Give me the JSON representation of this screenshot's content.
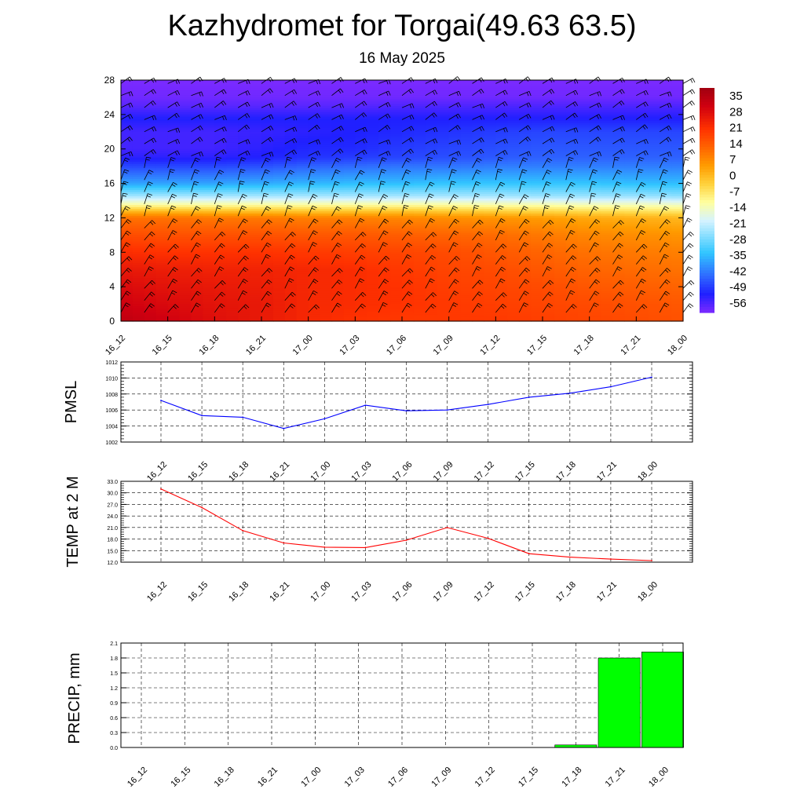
{
  "title": "Kazhydromet for Torgai(49.63 63.5)",
  "subtitle": "16 May 2025",
  "colors": {
    "pmsl_line": "#0000ff",
    "temp_line": "#ff0000",
    "precip_bar": "#00ff00",
    "wind_barb": "#000000"
  },
  "chart_data": [
    {
      "type": "heatmap",
      "title": "",
      "x_ticks": [
        "16_12",
        "16_15",
        "16_18",
        "16_21",
        "17_00",
        "17_03",
        "17_06",
        "17_09",
        "17_12",
        "17_15",
        "17_18",
        "17_21",
        "18_00"
      ],
      "y_ticks": [
        "0",
        "4",
        "8",
        "12",
        "16",
        "20",
        "24",
        "28"
      ],
      "ylim": [
        0,
        28
      ],
      "colorbar": {
        "labels": [
          "35",
          "28",
          "21",
          "14",
          "7",
          "0",
          "-7",
          "-14",
          "-21",
          "-28",
          "-35",
          "-42",
          "-49",
          "-56"
        ],
        "range": [
          -60,
          38
        ],
        "colors": [
          "#7b2aff",
          "#2020ff",
          "#2f6bff",
          "#31c6ff",
          "#d5f3ff",
          "#ffffa0",
          "#ffd23c",
          "#ff9c00",
          "#ff6400",
          "#ff3200",
          "#d00010",
          "#a00010"
        ],
        "stops": [
          -60,
          -52,
          -44,
          -34,
          -20,
          -12,
          -4,
          4,
          12,
          20,
          30,
          38
        ]
      },
      "temperature_profile": {
        "heights": [
          0,
          2,
          4,
          6,
          8,
          10,
          12,
          12.6,
          13.5,
          14.5,
          16,
          18,
          19,
          20,
          22,
          23.5,
          25,
          26,
          28
        ],
        "columns": [
          [
            33,
            30,
            28,
            25,
            21,
            16,
            10,
            2,
            -12,
            -24,
            -38,
            -48,
            -53,
            -55,
            -55,
            -52,
            -57,
            -59,
            -60
          ],
          [
            30,
            28,
            26,
            24,
            20,
            15,
            10,
            2,
            -12,
            -24,
            -38,
            -48,
            -53,
            -55,
            -55,
            -52,
            -57,
            -59,
            -60
          ],
          [
            27,
            26,
            25,
            23,
            20,
            15,
            9,
            1,
            -12,
            -24,
            -38,
            -48,
            -53,
            -55,
            -55,
            -52,
            -57,
            -59,
            -60
          ],
          [
            25,
            25,
            24,
            23,
            20,
            15,
            9,
            1,
            -12,
            -24,
            -37,
            -47,
            -52,
            -53,
            -54,
            -52,
            -57,
            -59,
            -60
          ],
          [
            22,
            22,
            22,
            22,
            19,
            14,
            8,
            0,
            -12,
            -24,
            -36,
            -45,
            -50,
            -51,
            -53,
            -52,
            -57,
            -59,
            -60
          ],
          [
            20,
            21,
            21,
            21,
            18,
            14,
            8,
            0,
            -12,
            -24,
            -35,
            -44,
            -49,
            -51,
            -52,
            -52,
            -57,
            -59,
            -60
          ],
          [
            19,
            20,
            20,
            19,
            17,
            13,
            7,
            0,
            -12,
            -24,
            -35,
            -43,
            -48,
            -49,
            -51,
            -52,
            -56,
            -59,
            -60
          ],
          [
            19,
            19,
            18,
            17,
            16,
            12,
            6,
            -1,
            -12,
            -24,
            -34,
            -43,
            -47,
            -48,
            -50,
            -52,
            -56,
            -59,
            -60
          ],
          [
            19,
            18,
            17,
            16,
            14,
            11,
            5,
            -2,
            -13,
            -24,
            -34,
            -42,
            -46,
            -47,
            -49,
            -52,
            -56,
            -59,
            -60
          ],
          [
            18,
            17,
            16,
            14,
            12,
            9,
            4,
            -3,
            -13,
            -25,
            -34,
            -42,
            -45,
            -46,
            -48,
            -52,
            -56,
            -59,
            -60
          ],
          [
            17,
            16,
            14,
            12,
            10,
            7,
            2,
            -4,
            -14,
            -25,
            -34,
            -42,
            -45,
            -46,
            -48,
            -52,
            -56,
            -59,
            -60
          ],
          [
            16,
            15,
            13,
            11,
            9,
            6,
            1,
            -5,
            -14,
            -25,
            -35,
            -42,
            -45,
            -46,
            -48,
            -52,
            -56,
            -59,
            -60
          ],
          [
            15,
            14,
            12,
            10,
            8,
            5,
            0,
            -6,
            -15,
            -26,
            -35,
            -42,
            -45,
            -46,
            -48,
            -52,
            -56,
            -59,
            -60
          ]
        ]
      }
    },
    {
      "type": "line",
      "ylabel": "PMSL",
      "x": [
        "16_12",
        "16_15",
        "16_18",
        "16_21",
        "17_00",
        "17_03",
        "17_06",
        "17_09",
        "17_12",
        "17_15",
        "17_18",
        "17_21",
        "18_00"
      ],
      "values": [
        1007.2,
        1005.3,
        1005.1,
        1003.7,
        1004.9,
        1006.6,
        1005.9,
        1006.0,
        1006.7,
        1007.6,
        1008.1,
        1008.9,
        1010.1
      ],
      "ylim": [
        1002,
        1012
      ],
      "y_ticks": [
        "1002",
        "1004",
        "1006",
        "1008",
        "1010",
        "1012"
      ]
    },
    {
      "type": "line",
      "ylabel": "TEMP at 2 M",
      "x": [
        "16_12",
        "16_15",
        "16_18",
        "16_21",
        "17_00",
        "17_03",
        "17_06",
        "17_09",
        "17_12",
        "17_15",
        "17_18",
        "17_21",
        "18_00"
      ],
      "values": [
        31.0,
        26.2,
        20.2,
        17.0,
        15.9,
        15.8,
        17.7,
        21.0,
        18.2,
        14.2,
        13.3,
        12.8,
        12.4
      ],
      "ylim": [
        12,
        33
      ],
      "y_ticks": [
        "12.0",
        "15.0",
        "18.0",
        "21.0",
        "24.0",
        "27.0",
        "30.0",
        "33.0"
      ]
    },
    {
      "type": "bar",
      "ylabel": "PRECIP, mm",
      "categories": [
        "16_12",
        "16_15",
        "16_18",
        "16_21",
        "17_00",
        "17_03",
        "17_06",
        "17_09",
        "17_12",
        "17_15",
        "17_18",
        "17_21",
        "18_00"
      ],
      "values": [
        0,
        0,
        0,
        0,
        0,
        0,
        0,
        0,
        0,
        0,
        0.05,
        1.8,
        1.92
      ],
      "ylim": [
        0,
        2.1
      ],
      "y_ticks": [
        "0.0",
        "0.3",
        "0.6",
        "0.9",
        "1.2",
        "1.5",
        "1.8",
        "2.1"
      ]
    }
  ]
}
